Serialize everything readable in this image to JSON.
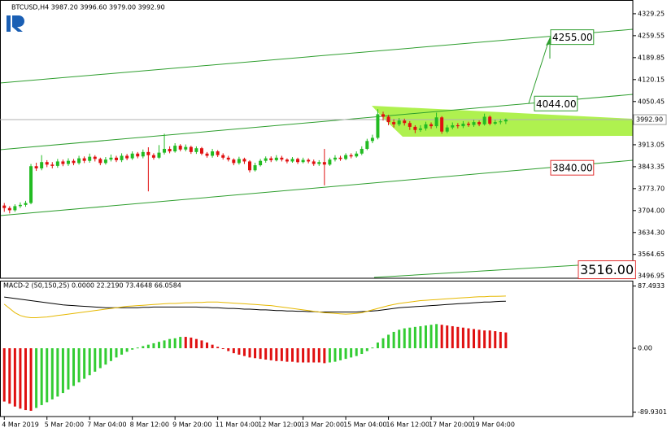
{
  "chart_data": [
    {
      "type": "candlestick",
      "title": "BTCUSD,H4 3987.20 3996.60 3979.00 3992.90",
      "bull_color": "#22bb22",
      "bear_color": "#e01010",
      "open": [
        3720,
        3712,
        3705,
        3718,
        3722,
        3728,
        3845,
        3838,
        3858,
        3850,
        3846,
        3860,
        3852,
        3862,
        3855,
        3870,
        3862,
        3875,
        3868,
        3855,
        3866,
        3872,
        3864,
        3878,
        3870,
        3885,
        3876,
        3890,
        3880,
        3872,
        3888,
        3900,
        3892,
        3910,
        3898,
        3906,
        3890,
        3902,
        3885,
        3878,
        3892,
        3880,
        3872,
        3866,
        3855,
        3868,
        3860,
        3832,
        3848,
        3862,
        3870,
        3864,
        3872,
        3866,
        3860,
        3868,
        3858,
        3865,
        3860,
        3852,
        3858,
        3850,
        3866,
        3872,
        3868,
        3880,
        3876,
        3885,
        3900,
        3925,
        3935,
        4010,
        4002,
        3985,
        3978,
        3990,
        3982,
        3970,
        3960,
        3965,
        3978,
        3972,
        4000,
        3955,
        3968,
        3975,
        3972,
        3980,
        3976,
        3985,
        3978,
        4002,
        3980,
        3985,
        3987.2
      ],
      "high": [
        3728,
        3718,
        3724,
        3730,
        3735,
        3852,
        3856,
        3880,
        3864,
        3858,
        3868,
        3866,
        3870,
        3868,
        3878,
        3876,
        3885,
        3880,
        3872,
        3874,
        3882,
        3878,
        3886,
        3884,
        3892,
        3890,
        3898,
        3905,
        3886,
        3912,
        3948,
        3908,
        3918,
        3915,
        3914,
        3910,
        3908,
        3906,
        3890,
        3900,
        3896,
        3886,
        3878,
        3870,
        3875,
        3872,
        3864,
        3856,
        3868,
        3876,
        3876,
        3880,
        3878,
        3870,
        3874,
        3872,
        3872,
        3870,
        3866,
        3864,
        3900,
        3872,
        3880,
        3878,
        3886,
        3886,
        3892,
        3908,
        3932,
        3945,
        4026,
        4018,
        4008,
        3994,
        3998,
        3996,
        3988,
        3975,
        3975,
        3986,
        3984,
        4015,
        4004,
        3976,
        3984,
        3982,
        3988,
        3986,
        3992,
        3990,
        4012,
        4006,
        3992,
        3994,
        3996.6
      ],
      "low": [
        3700,
        3695,
        3700,
        3712,
        3716,
        3724,
        3830,
        3832,
        3842,
        3838,
        3840,
        3845,
        3846,
        3848,
        3850,
        3855,
        3856,
        3860,
        3848,
        3850,
        3860,
        3858,
        3858,
        3864,
        3865,
        3870,
        3870,
        3765,
        3866,
        3868,
        3882,
        3886,
        3888,
        3892,
        3892,
        3884,
        3884,
        3880,
        3872,
        3872,
        3874,
        3866,
        3860,
        3848,
        3850,
        3852,
        3825,
        3828,
        3844,
        3856,
        3858,
        3860,
        3860,
        3854,
        3856,
        3852,
        3854,
        3854,
        3846,
        3846,
        3784,
        3846,
        3860,
        3862,
        3864,
        3870,
        3872,
        3880,
        3896,
        3918,
        3930,
        3990,
        3975,
        3968,
        3972,
        3974,
        3960,
        3950,
        3954,
        3958,
        3964,
        3966,
        3948,
        3950,
        3962,
        3965,
        3966,
        3970,
        3970,
        3972,
        3974,
        3975,
        3976,
        3978,
        3979
      ],
      "close": [
        3712,
        3705,
        3718,
        3722,
        3728,
        3845,
        3838,
        3858,
        3850,
        3846,
        3860,
        3852,
        3862,
        3855,
        3870,
        3862,
        3875,
        3868,
        3855,
        3866,
        3872,
        3864,
        3878,
        3870,
        3885,
        3876,
        3890,
        3880,
        3872,
        3888,
        3900,
        3892,
        3910,
        3898,
        3906,
        3890,
        3902,
        3885,
        3878,
        3892,
        3880,
        3872,
        3866,
        3855,
        3868,
        3860,
        3832,
        3848,
        3862,
        3870,
        3864,
        3872,
        3866,
        3860,
        3868,
        3858,
        3865,
        3860,
        3852,
        3858,
        3850,
        3866,
        3872,
        3868,
        3880,
        3876,
        3885,
        3900,
        3925,
        3935,
        4010,
        4002,
        3985,
        3978,
        3990,
        3982,
        3970,
        3960,
        3965,
        3978,
        3972,
        4000,
        3955,
        3968,
        3975,
        3972,
        3980,
        3976,
        3985,
        3978,
        4002,
        3980,
        3985,
        3987.2,
        3992.9
      ],
      "xlim": [
        -0.8,
        117.8
      ],
      "xticks": [
        {
          "value": 0,
          "label": "4 Mar 2019"
        },
        {
          "value": 8,
          "label": "5 Mar 20:00"
        },
        {
          "value": 16,
          "label": "7 Mar 04:00"
        },
        {
          "value": 24,
          "label": "8 Mar 12:00"
        },
        {
          "value": 32,
          "label": "9 Mar 20:00"
        },
        {
          "value": 40,
          "label": "11 Mar 04:00"
        },
        {
          "value": 48,
          "label": "12 Mar 12:00"
        },
        {
          "value": 56,
          "label": "13 Mar 20:00"
        },
        {
          "value": 64,
          "label": "15 Mar 04:00"
        },
        {
          "value": 72,
          "label": "16 Mar 12:00"
        },
        {
          "value": 80,
          "label": "17 Mar 20:00"
        },
        {
          "value": 88,
          "label": "19 Mar 04:00"
        }
      ],
      "ylim": [
        3489,
        4360
      ],
      "yticks": [
        4329.25,
        4259.55,
        4189.85,
        4120.15,
        4050.45,
        3913.05,
        3843.35,
        {
          "value": 3773.7,
          "label": "3773.70"
        },
        {
          "value": 3704,
          "label": "3704.00"
        },
        {
          "value": 3634.3,
          "label": "3634.30"
        },
        3564.65,
        3496.95
      ],
      "last_price": {
        "value": 3992.9,
        "label": "3992.90"
      },
      "annotations": [
        {
          "value": 4255,
          "label": "4255.00",
          "color": "#2e9e2e"
        },
        {
          "value": 4044,
          "label": "4044.00",
          "color": "#2e9e2e"
        },
        {
          "value": 3840,
          "label": "3840.00",
          "color": "#e03030"
        },
        {
          "value": 3516,
          "label": "3516.00",
          "color": "#e03030"
        }
      ]
    },
    {
      "type": "macd",
      "title": "MACD-2 (50,150,25) 0.0000 22.2190 73.4648 66.0584",
      "ylim": [
        -96.1,
        93.9
      ],
      "yticks": [
        87.4933,
        {
          "value": 0,
          "label": "0.00"
        },
        -89.9301
      ],
      "histogram": {
        "up_color": "#33cc33",
        "down_color": "#e01010",
        "values": [
          -75,
          -78,
          -82,
          -85,
          -87,
          -88,
          -84,
          -80,
          -76,
          -72,
          -68,
          -63,
          -58,
          -53,
          -48,
          -43,
          -38,
          -33,
          -28,
          -23,
          -18,
          -13,
          -9,
          -5,
          -2,
          1,
          3,
          5,
          7,
          9,
          11,
          13,
          14,
          16,
          16,
          15,
          13,
          11,
          8,
          5,
          2,
          -1,
          -4,
          -7,
          -9,
          -11,
          -13,
          -14,
          -15,
          -16,
          -17,
          -18,
          -18,
          -19,
          -19,
          -20,
          -20,
          -20,
          -20,
          -20,
          -21,
          -20,
          -19,
          -17,
          -15,
          -13,
          -11,
          -8,
          -4,
          1,
          8,
          14,
          19,
          23,
          26,
          28,
          29,
          30,
          31,
          32,
          33,
          34,
          33,
          32,
          31,
          30,
          29,
          28,
          27,
          26,
          25,
          25,
          24,
          23,
          22.219
        ]
      },
      "lines": [
        {
          "color": "#000000",
          "values": [
            72,
            71,
            70,
            69,
            68,
            67,
            66,
            65,
            64,
            63,
            62,
            61,
            60.5,
            60,
            59.5,
            59,
            58.5,
            58,
            57.5,
            57,
            57,
            57,
            57,
            57,
            57,
            57,
            57.5,
            57.5,
            58,
            58,
            58,
            58,
            58,
            58,
            58,
            58,
            58,
            57.5,
            57.5,
            57,
            57,
            56.5,
            56,
            56,
            55.5,
            55,
            55,
            54.5,
            54,
            54,
            53.5,
            53,
            53,
            52.5,
            52.5,
            52,
            52,
            51.5,
            51.5,
            51,
            51,
            51,
            51,
            51,
            51,
            51,
            51,
            51.5,
            52,
            52.5,
            53,
            54,
            55,
            56,
            57,
            57.5,
            58,
            58.5,
            59,
            59.5,
            60,
            60.5,
            61,
            61.5,
            62,
            62.5,
            63,
            63.5,
            64,
            64.5,
            65,
            65,
            65.5,
            66,
            66.0584
          ]
        },
        {
          "color": "#e6b800",
          "values": [
            62,
            56,
            50,
            46,
            44,
            43,
            43,
            43.5,
            44,
            45,
            46,
            47,
            48,
            49,
            50,
            51,
            52,
            53,
            54,
            55,
            56,
            57,
            58,
            59,
            59.5,
            60,
            60.5,
            61,
            61.5,
            62,
            62.5,
            63,
            63,
            63.5,
            64,
            64,
            64.5,
            64.5,
            65,
            65,
            65,
            64.5,
            64,
            63.5,
            63,
            62.5,
            62,
            61.5,
            61,
            60.5,
            60,
            59,
            58,
            57,
            56,
            55,
            54,
            53,
            52,
            51,
            50,
            49.5,
            49,
            48.5,
            48,
            48.5,
            49,
            50,
            52,
            54,
            56,
            58,
            60,
            61.5,
            63,
            64,
            65,
            66,
            67,
            67.5,
            68,
            68.5,
            69,
            69.5,
            70,
            70.5,
            71,
            71.5,
            72,
            72.5,
            72.5,
            73,
            73,
            73.2,
            73.4648
          ]
        }
      ]
    }
  ]
}
